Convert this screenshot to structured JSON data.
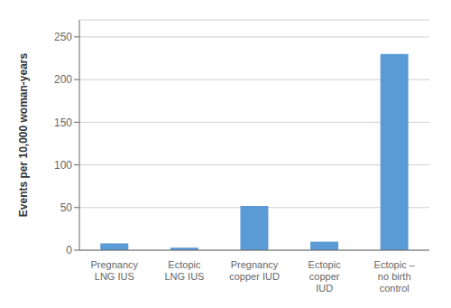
{
  "chart_data": {
    "type": "bar",
    "ylabel": "Events per 10,000 woman-years",
    "categories": [
      "Pregnancy\nLNG IUS",
      "Ectopic\nLNG IUS",
      "Pregnancy\ncopper IUD",
      "Ectopic\ncopper\nIUD",
      "Ectopic –\nno birth\ncontrol"
    ],
    "values": [
      8,
      3,
      52,
      10,
      230
    ],
    "color": "#5B9BD5",
    "ylim": [
      0,
      270
    ],
    "yticks": [
      0,
      50,
      100,
      150,
      200,
      250
    ],
    "grid": true
  }
}
